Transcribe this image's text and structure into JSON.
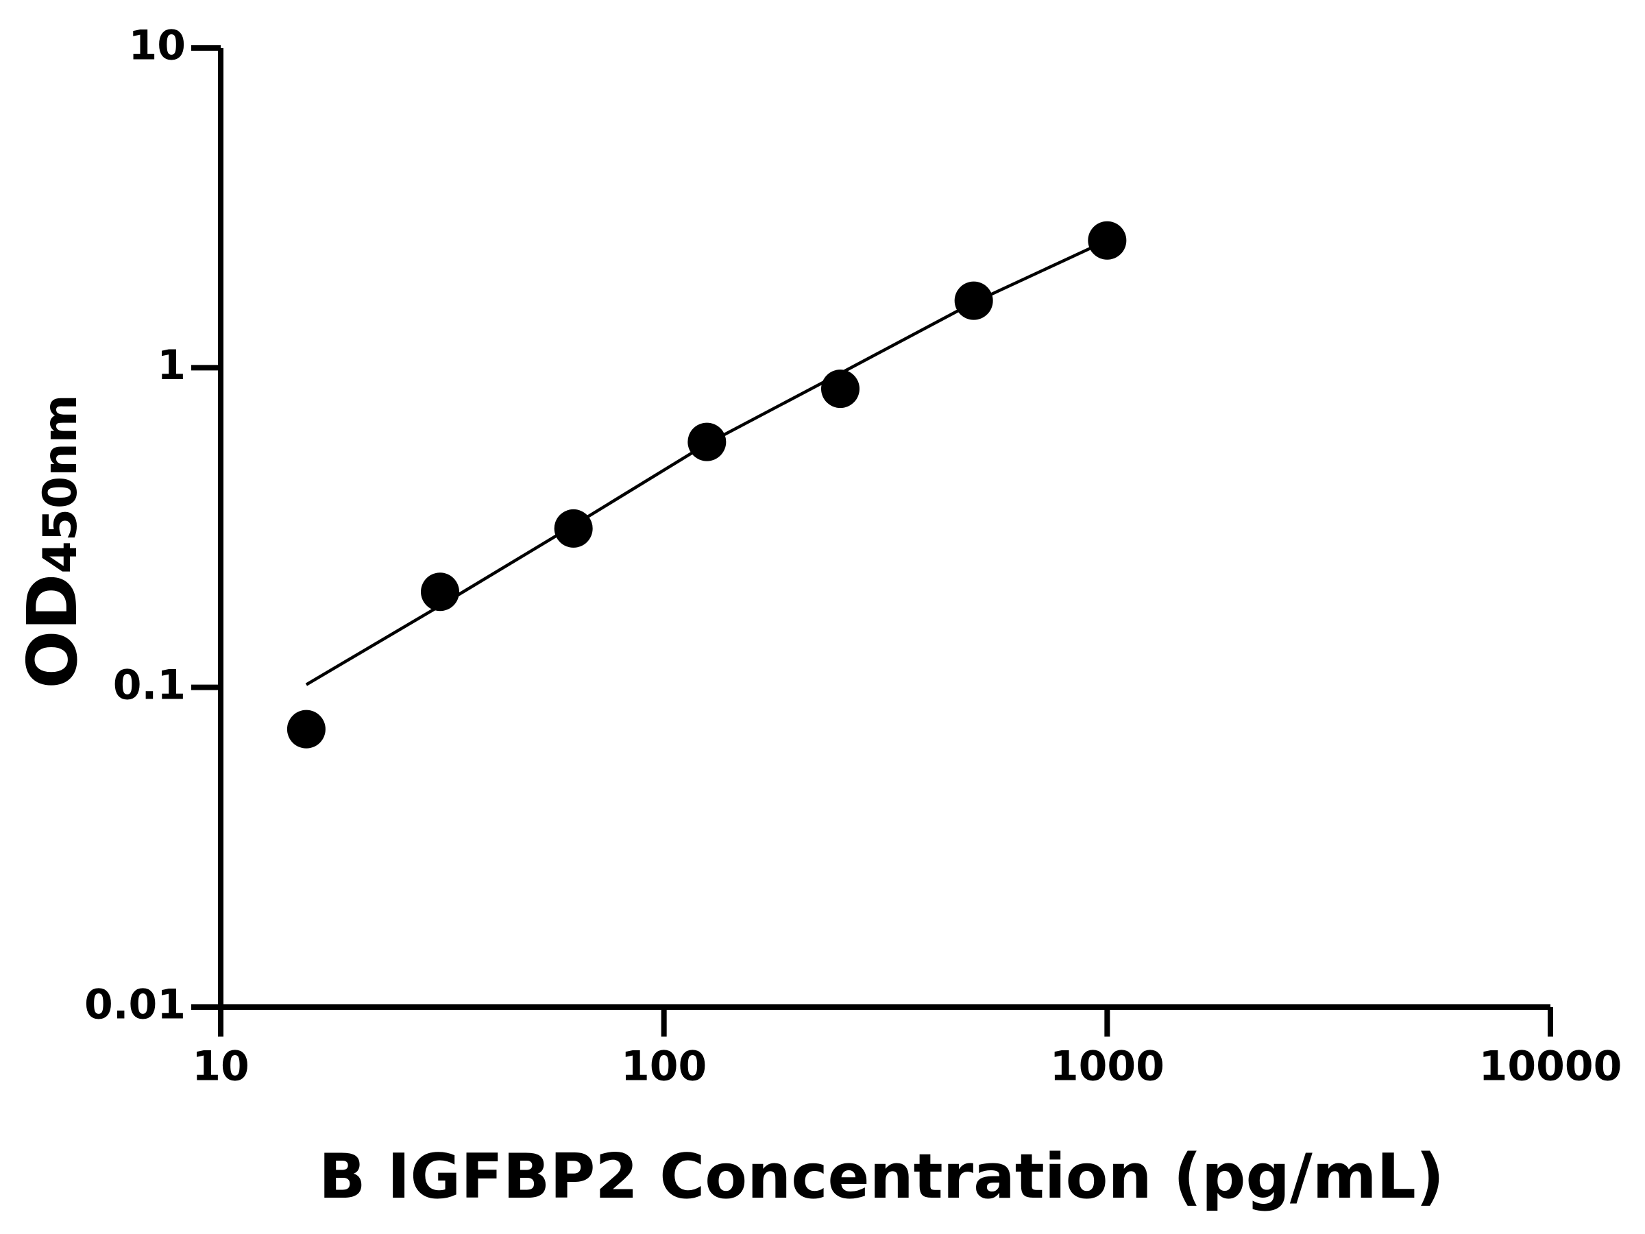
{
  "chart_data": {
    "type": "scatter",
    "x_label": "B IGFBP2 Concentration (pg/mL)",
    "y_label": "OD",
    "y_label_subscript": "450nm",
    "log_x": true,
    "log_y": true,
    "xlim": [
      10,
      10000
    ],
    "xticks": [
      10,
      100,
      1000,
      10000
    ],
    "ylim": [
      0.01,
      10
    ],
    "yticks": [
      0.01,
      0.1,
      1,
      10
    ],
    "color": "#000000",
    "points": {
      "x": [
        15.6,
        31.25,
        62.5,
        125,
        250,
        500,
        1000
      ],
      "values": [
        0.074,
        0.199,
        0.314,
        0.586,
        0.859,
        1.62,
        2.5
      ]
    },
    "fit": {
      "x": [
        15.6,
        31.25,
        62.5,
        125,
        250,
        500,
        1000
      ],
      "values": [
        0.102,
        0.18,
        0.321,
        0.578,
        0.96,
        1.6,
        2.5
      ]
    }
  }
}
